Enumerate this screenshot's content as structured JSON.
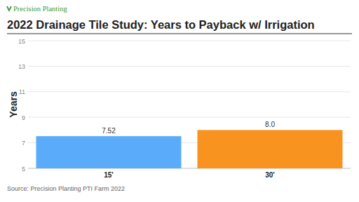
{
  "chart_data": {
    "type": "bar",
    "brand": "Precision Planting",
    "title": "2022 Drainage Tile Study: Years to Payback w/ Irrigation",
    "y_label": "Years",
    "source": "Source: Precision Planting PTI Farm 2022",
    "categories": [
      "15'",
      "30'"
    ],
    "values": [
      7.52,
      8.0
    ],
    "value_labels": [
      "7.52",
      "8.0"
    ],
    "colors": [
      "#5aabf9",
      "#f7931e"
    ],
    "ylim": [
      5,
      15
    ],
    "yticks": [
      5,
      7,
      9,
      11,
      13,
      15
    ],
    "grid": true,
    "data_labels": true
  }
}
